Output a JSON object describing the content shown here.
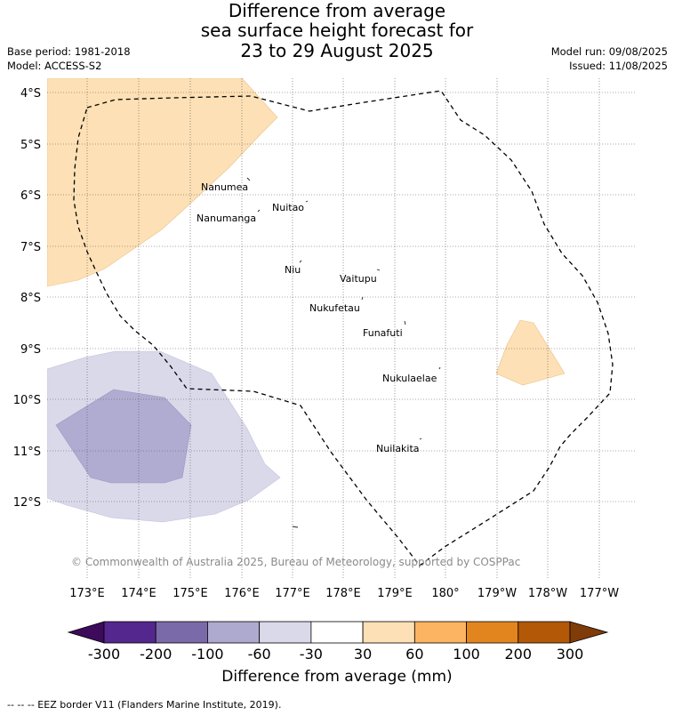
{
  "header": {
    "title_line1": "Difference from average",
    "title_line2": "sea surface height forecast for",
    "title_line3": "23 to 29 August 2025",
    "base_period": "Base period: 1981-2018",
    "model": "Model: ACCESS-S2",
    "model_run": "Model run: 09/08/2025",
    "issued": "Issued: 11/08/2025"
  },
  "map": {
    "lat_labels": [
      "4°S",
      "5°S",
      "6°S",
      "7°S",
      "8°S",
      "9°S",
      "10°S",
      "11°S",
      "12°S"
    ],
    "lon_labels": [
      "173°E",
      "174°E",
      "175°E",
      "176°E",
      "177°E",
      "178°E",
      "179°E",
      "180°",
      "179°W",
      "178°W",
      "177°W"
    ],
    "islands": [
      {
        "name": "Nanumea"
      },
      {
        "name": "Nuitao"
      },
      {
        "name": "Nanumanga"
      },
      {
        "name": "Niu"
      },
      {
        "name": "Vaitupu"
      },
      {
        "name": "Nukufetau"
      },
      {
        "name": "Funafuti"
      },
      {
        "name": "Nukulaelae"
      },
      {
        "name": "Nuilakita"
      }
    ],
    "copyright": "© Commonwealth of Australia 2025, Bureau of Meteorology, supported by COSPPac",
    "colors": {
      "positive_30_60": "#fde0b5",
      "negative_60_30": "#d9d9ea",
      "negative_100_60": "#b0abd0",
      "eez_border": "#000000",
      "grid": "#555555"
    }
  },
  "colorbar": {
    "ticks": [
      "-300",
      "-200",
      "-100",
      "-60",
      "-30",
      "30",
      "60",
      "100",
      "200",
      "300"
    ],
    "colors": [
      "#3d0a5c",
      "#54278f",
      "#7b6aa9",
      "#aeaacf",
      "#d9d9ea",
      "#ffffff",
      "#fde0b5",
      "#fdb462",
      "#e3851e",
      "#b35806",
      "#7f3b08"
    ],
    "title": "Difference from average (mm)"
  },
  "footer": {
    "legend_text": "--  --  -- EEZ border V11 (Flanders Marine Institute, 2019)."
  }
}
